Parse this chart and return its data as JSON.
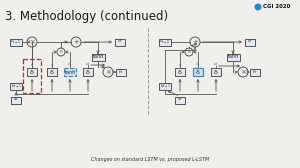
{
  "title": "3. Methodology (continued)",
  "subtitle": "Changes on standard LSTM vs. proposed L-LSTM",
  "bg_color": "#f0efeb",
  "title_color": "#1a1a1a",
  "subtitle_color": "#333333",
  "logo_text": "CGI 2020",
  "diagram_color": "#555555",
  "box_face": "#e2e8ee",
  "box_blue_face": "#cce0f0",
  "box_blue_edge": "#4488bb",
  "red_dash_color": "#cc2222",
  "sep_color": "#999999"
}
